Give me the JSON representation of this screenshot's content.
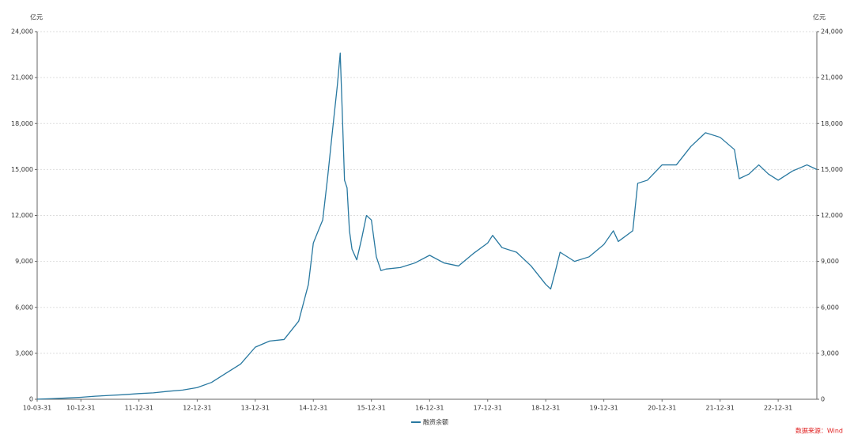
{
  "chart_data": {
    "type": "line",
    "y_label": "亿元",
    "y2_label": "亿元",
    "source": "数据来源：Wind",
    "x": [
      "10-03-31",
      "10-06-30",
      "10-09-30",
      "10-12-31",
      "11-03-31",
      "11-06-30",
      "11-09-30",
      "11-12-31",
      "12-03-31",
      "12-06-30",
      "12-09-30",
      "12-12-31",
      "13-03-31",
      "13-06-30",
      "13-09-30",
      "13-12-31",
      "14-03-31",
      "14-06-30",
      "14-09-30",
      "14-11-30",
      "14-12-31",
      "15-01-31",
      "15-02-28",
      "15-03-31",
      "15-04-30",
      "15-05-31",
      "15-06-18",
      "15-06-30",
      "15-07-15",
      "15-07-31",
      "15-08-15",
      "15-08-31",
      "15-09-30",
      "15-10-31",
      "15-11-30",
      "15-12-31",
      "16-01-31",
      "16-02-29",
      "16-03-31",
      "16-06-30",
      "16-09-30",
      "16-12-31",
      "17-03-31",
      "17-06-30",
      "17-09-30",
      "17-12-31",
      "18-01-31",
      "18-03-31",
      "18-06-30",
      "18-09-30",
      "18-12-31",
      "19-01-31",
      "19-02-28",
      "19-03-31",
      "19-06-30",
      "19-09-30",
      "19-12-31",
      "20-02-29",
      "20-03-31",
      "20-06-30",
      "20-07-31",
      "20-09-30",
      "20-12-31",
      "21-03-31",
      "21-06-30",
      "21-09-30",
      "21-12-31",
      "22-03-31",
      "22-04-30",
      "22-06-30",
      "22-08-31",
      "22-10-31",
      "22-12-31",
      "23-03-31",
      "23-06-30",
      "23-08-31"
    ],
    "series": [
      {
        "name": "融资余额",
        "color": "#2878a0",
        "values": [
          5,
          40,
          80,
          130,
          200,
          250,
          300,
          370,
          420,
          520,
          600,
          760,
          1100,
          1700,
          2300,
          3400,
          3800,
          3900,
          5100,
          7500,
          10200,
          11000,
          11700,
          14500,
          17500,
          20500,
          22600,
          19000,
          14300,
          13800,
          11000,
          9800,
          9100,
          10500,
          12000,
          11700,
          9300,
          8400,
          8500,
          8600,
          8900,
          9400,
          8900,
          8700,
          9500,
          10200,
          10700,
          9900,
          9600,
          8700,
          7500,
          7200,
          8300,
          9600,
          9000,
          9300,
          10100,
          11000,
          10300,
          11000,
          14100,
          14300,
          15300,
          15300,
          16500,
          17400,
          17100,
          16300,
          14400,
          14700,
          15300,
          14700,
          14300,
          14900,
          15300,
          15000
        ]
      }
    ],
    "xlim": [
      "10-03-31",
      "23-08-31"
    ],
    "xticks": [
      "10-03-31",
      "10-12-31",
      "11-12-31",
      "12-12-31",
      "13-12-31",
      "14-12-31",
      "15-12-31",
      "16-12-31",
      "17-12-31",
      "18-12-31",
      "19-12-31",
      "20-12-31",
      "21-12-31",
      "22-12-31"
    ],
    "ylim": [
      0,
      24000
    ],
    "yticks": [
      0,
      {
        "value": 3000,
        "label": "3,000"
      },
      {
        "value": 6000,
        "label": "6,000"
      },
      {
        "value": 9000,
        "label": "9,000"
      },
      {
        "value": 12000,
        "label": "12,000"
      },
      {
        "value": 15000,
        "label": "15,000"
      },
      {
        "value": 18000,
        "label": "18,000"
      },
      {
        "value": 21000,
        "label": "21,000"
      },
      {
        "value": 24000,
        "label": "24,000"
      }
    ],
    "y2lim": [
      0,
      24000
    ],
    "y2ticks": [
      0,
      {
        "value": 3000,
        "label": "3,000"
      },
      {
        "value": 6000,
        "label": "6,000"
      },
      {
        "value": 9000,
        "label": "9,000"
      },
      {
        "value": 12000,
        "label": "12,000"
      },
      {
        "value": 15000,
        "label": "15,000"
      },
      {
        "value": 18000,
        "label": "18,000"
      },
      {
        "value": 21000,
        "label": "21,000"
      },
      {
        "value": 24000,
        "label": "24,000"
      }
    ],
    "grid": true,
    "legend": "bottom"
  }
}
